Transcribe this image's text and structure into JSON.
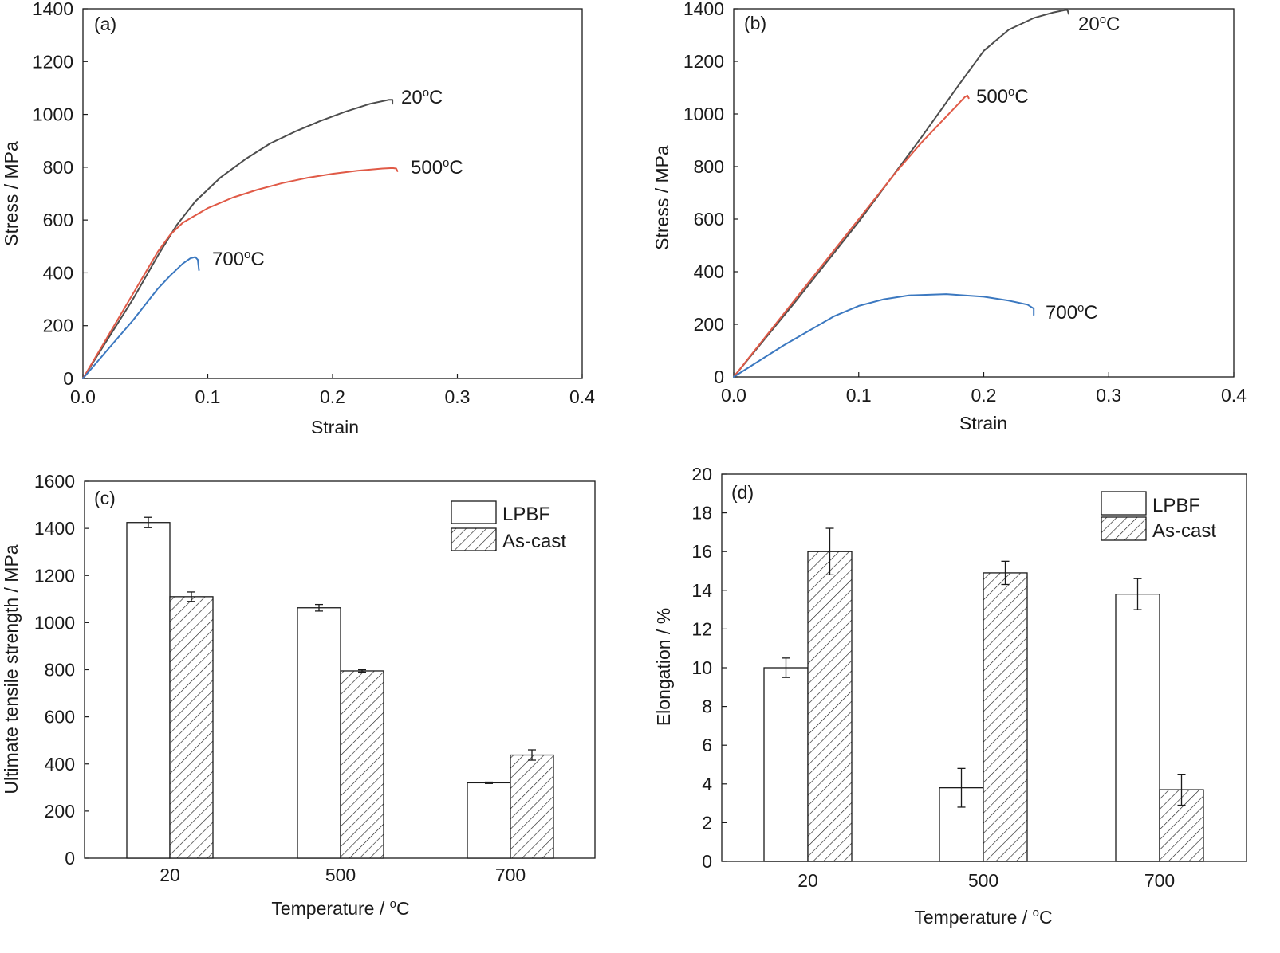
{
  "chart_data": [
    {
      "id": "a",
      "type": "line",
      "panel_label": "(a)",
      "xlabel": "Strain",
      "ylabel": "Stress / MPa",
      "xlim": [
        0,
        0.4
      ],
      "ylim": [
        0,
        1400
      ],
      "xticks": [
        0.0,
        0.1,
        0.2,
        0.3,
        0.4
      ],
      "xtick_labels": [
        "0.0",
        "0.1",
        "0.2",
        "0.3",
        "0.4"
      ],
      "yticks": [
        0,
        200,
        400,
        600,
        800,
        1000,
        1200,
        1400
      ],
      "ytick_labels": [
        "0",
        "200",
        "400",
        "600",
        "800",
        "1000",
        "1200",
        "1400"
      ],
      "series": [
        {
          "name": "20°C",
          "color": "#4d4d4d",
          "label_text": "20",
          "label_unit": "C",
          "x": [
            0,
            0.02,
            0.04,
            0.06,
            0.075,
            0.09,
            0.11,
            0.13,
            0.15,
            0.17,
            0.19,
            0.21,
            0.23,
            0.245,
            0.248,
            0.248
          ],
          "y": [
            0,
            150,
            300,
            465,
            580,
            670,
            760,
            830,
            890,
            935,
            975,
            1010,
            1040,
            1055,
            1055,
            1040
          ]
        },
        {
          "name": "500°C",
          "color": "#e05a47",
          "label_text": "500",
          "label_unit": "C",
          "x": [
            0,
            0.02,
            0.04,
            0.06,
            0.07,
            0.08,
            0.1,
            0.12,
            0.14,
            0.16,
            0.18,
            0.2,
            0.22,
            0.24,
            0.248,
            0.251,
            0.252
          ],
          "y": [
            0,
            160,
            320,
            480,
            545,
            590,
            645,
            685,
            715,
            740,
            760,
            775,
            787,
            795,
            797,
            795,
            785
          ]
        },
        {
          "name": "700°C",
          "color": "#3b78c0",
          "label_text": "700",
          "label_unit": "C",
          "x": [
            0,
            0.02,
            0.04,
            0.06,
            0.07,
            0.08,
            0.086,
            0.09,
            0.092,
            0.093
          ],
          "y": [
            0,
            110,
            220,
            340,
            390,
            435,
            455,
            460,
            450,
            410
          ]
        }
      ]
    },
    {
      "id": "b",
      "type": "line",
      "panel_label": "(b)",
      "xlabel": "Strain",
      "ylabel": "Stress / MPa",
      "xlim": [
        0,
        0.4
      ],
      "ylim": [
        0,
        1400
      ],
      "xticks": [
        0.0,
        0.1,
        0.2,
        0.3,
        0.4
      ],
      "xtick_labels": [
        "0.0",
        "0.1",
        "0.2",
        "0.3",
        "0.4"
      ],
      "yticks": [
        0,
        200,
        400,
        600,
        800,
        1000,
        1200,
        1400
      ],
      "ytick_labels": [
        "0",
        "200",
        "400",
        "600",
        "800",
        "1000",
        "1200",
        "1400"
      ],
      "series": [
        {
          "name": "20°C",
          "color": "#4d4d4d",
          "label_text": "20",
          "label_unit": "C",
          "x": [
            0,
            0.05,
            0.1,
            0.15,
            0.18,
            0.2,
            0.22,
            0.24,
            0.255,
            0.265,
            0.267,
            0.268
          ],
          "y": [
            0,
            290,
            590,
            910,
            1110,
            1240,
            1320,
            1365,
            1385,
            1395,
            1395,
            1380
          ]
        },
        {
          "name": "500°C",
          "color": "#e05a47",
          "label_text": "500",
          "label_unit": "C",
          "x": [
            0,
            0.05,
            0.1,
            0.13,
            0.15,
            0.17,
            0.185,
            0.187,
            0.188
          ],
          "y": [
            0,
            300,
            600,
            780,
            890,
            990,
            1065,
            1070,
            1060
          ]
        },
        {
          "name": "700°C",
          "color": "#3b78c0",
          "label_text": "700",
          "label_unit": "C",
          "x": [
            0,
            0.04,
            0.08,
            0.1,
            0.12,
            0.14,
            0.17,
            0.2,
            0.22,
            0.235,
            0.24,
            0.24
          ],
          "y": [
            0,
            120,
            230,
            270,
            295,
            310,
            315,
            305,
            290,
            275,
            260,
            235
          ]
        }
      ]
    },
    {
      "id": "c",
      "type": "bar",
      "panel_label": "(c)",
      "xlabel": "Temperature / ",
      "xlabel_unit": "C",
      "ylabel": "Ultimate tensile strength / MPa",
      "ylim": [
        0,
        1600
      ],
      "yticks": [
        0,
        200,
        400,
        600,
        800,
        1000,
        1200,
        1400,
        1600
      ],
      "ytick_labels": [
        "0",
        "200",
        "400",
        "600",
        "800",
        "1000",
        "1200",
        "1400",
        "1600"
      ],
      "categories": [
        "20",
        "500",
        "700"
      ],
      "series": [
        {
          "name": "LPBF",
          "fill": "open",
          "values": [
            1425,
            1063,
            320
          ],
          "errors": [
            22,
            14,
            3
          ]
        },
        {
          "name": "As-cast",
          "fill": "hatched",
          "values": [
            1110,
            795,
            438
          ],
          "errors": [
            20,
            5,
            22
          ]
        }
      ],
      "legend": "top-right"
    },
    {
      "id": "d",
      "type": "bar",
      "panel_label": "(d)",
      "xlabel": "Temperature / ",
      "xlabel_unit": "C",
      "ylabel": "Elongation / %",
      "ylim": [
        0,
        20
      ],
      "yticks": [
        0,
        2,
        4,
        6,
        8,
        10,
        12,
        14,
        16,
        18,
        20
      ],
      "ytick_labels": [
        "0",
        "2",
        "4",
        "6",
        "8",
        "10",
        "12",
        "14",
        "16",
        "18",
        "20"
      ],
      "categories": [
        "20",
        "500",
        "700"
      ],
      "series": [
        {
          "name": "LPBF",
          "fill": "open",
          "values": [
            10.0,
            3.8,
            13.8
          ],
          "errors": [
            0.5,
            1.0,
            0.8
          ]
        },
        {
          "name": "As-cast",
          "fill": "hatched",
          "values": [
            16.0,
            14.9,
            3.7
          ],
          "errors": [
            1.2,
            0.6,
            0.8
          ]
        }
      ],
      "legend": "top-right"
    }
  ]
}
